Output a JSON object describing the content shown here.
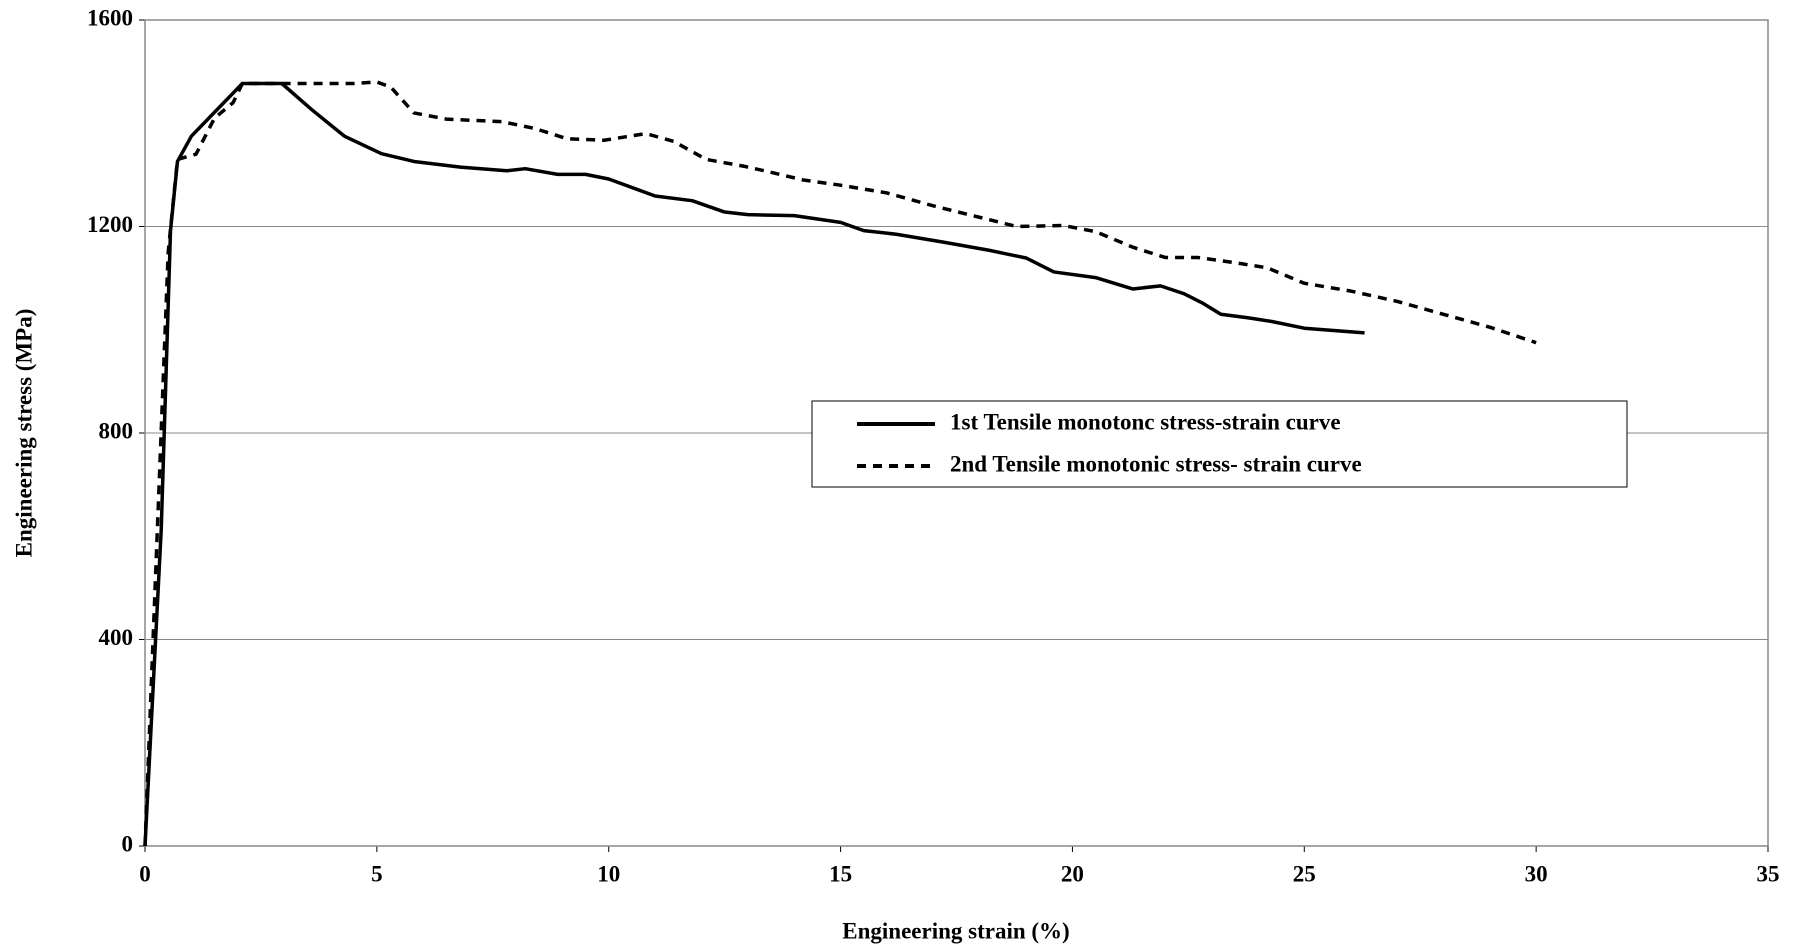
{
  "chart_data": {
    "type": "line",
    "x_label": "Engineering strain (%)",
    "y_label": "Engineering stress (MPa)",
    "xlim": [
      0,
      35
    ],
    "xticks": [
      0,
      5,
      10,
      15,
      20,
      25,
      30,
      35
    ],
    "ylim": [
      0,
      1600
    ],
    "yticks": [
      0,
      400,
      800,
      1200,
      1600
    ],
    "grid": true,
    "legend": "center-right",
    "series": [
      {
        "name": "1st Tensile monotonc stress-strain curve",
        "color": "#000000",
        "dash": "solid",
        "x": [
          0,
          0.35,
          0.55,
          0.7,
          1.0,
          2.1,
          2.95,
          3.6,
          4.3,
          5.1,
          5.8,
          6.8,
          7.8,
          8.2,
          8.9,
          9.5,
          10.0,
          11.0,
          11.8,
          12.5,
          13.0,
          14.0,
          15.0,
          15.5,
          16.2,
          17.2,
          18.2,
          19.0,
          19.6,
          20.5,
          21.3,
          21.9,
          22.4,
          22.8,
          23.2,
          23.8,
          24.3,
          25.0,
          26.3
        ],
        "values": [
          0,
          613,
          1192,
          1326,
          1375,
          1477,
          1477,
          1426,
          1375,
          1341,
          1326,
          1315,
          1308,
          1312,
          1301,
          1301,
          1292,
          1259,
          1250,
          1228,
          1223,
          1221,
          1208,
          1192,
          1185,
          1170,
          1154,
          1139,
          1112,
          1101,
          1079,
          1085,
          1070,
          1052,
          1030,
          1023,
          1016,
          1003,
          994
        ]
      },
      {
        "name": "2nd Tensile monotonic stress- strain curve",
        "color": "#000000",
        "dash": "dashed",
        "x": [
          0,
          0.5,
          0.7,
          1.1,
          1.5,
          1.9,
          2.1,
          3.0,
          4.5,
          5.0,
          5.3,
          5.8,
          6.5,
          7.7,
          8.4,
          9.1,
          9.9,
          10.8,
          11.4,
          12.1,
          12.9,
          13.5,
          14.2,
          15.0,
          16.0,
          17.0,
          17.9,
          18.8,
          19.8,
          20.5,
          21.3,
          22.0,
          22.7,
          23.5,
          24.2,
          25.0,
          26.0,
          27.0,
          28.0,
          29.0,
          30.0
        ],
        "values": [
          0,
          1150,
          1330,
          1340,
          1410,
          1440,
          1477,
          1477,
          1477,
          1480,
          1470,
          1420,
          1408,
          1403,
          1390,
          1370,
          1367,
          1380,
          1365,
          1330,
          1317,
          1305,
          1290,
          1280,
          1265,
          1240,
          1220,
          1200,
          1202,
          1190,
          1160,
          1140,
          1140,
          1130,
          1120,
          1090,
          1075,
          1055,
          1030,
          1005,
          975
        ]
      }
    ]
  }
}
